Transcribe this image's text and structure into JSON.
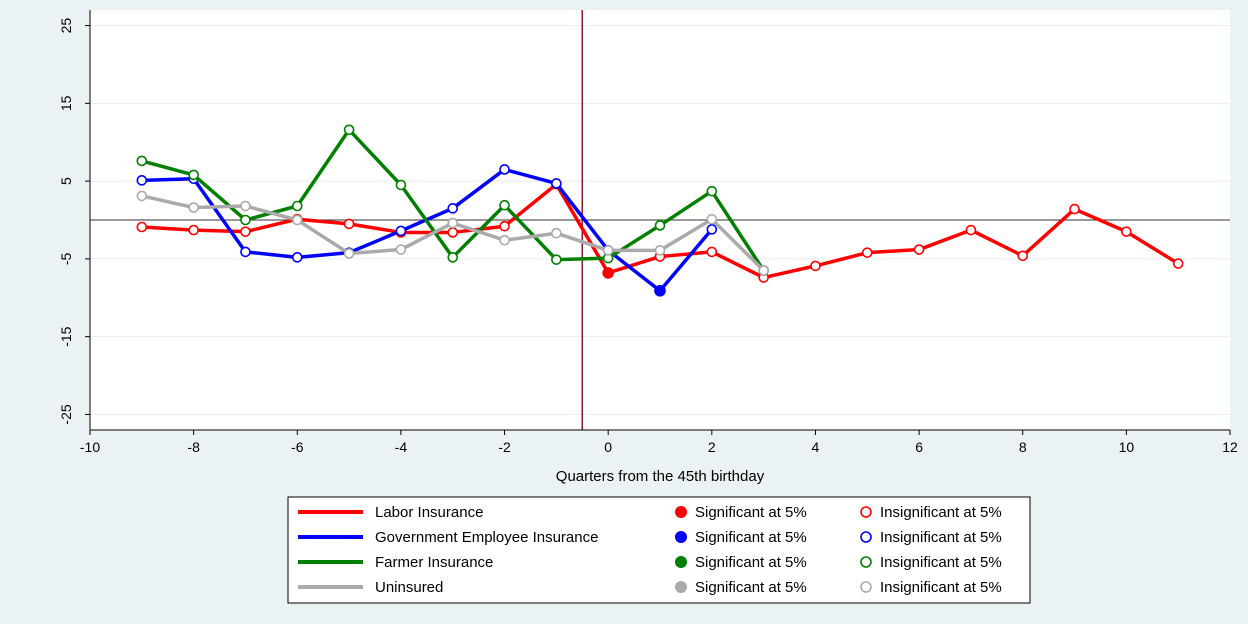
{
  "chart_data": {
    "type": "line",
    "title": "",
    "xlabel": "Quarters from the 45th birthday",
    "ylabel": "",
    "xlim": [
      -10,
      12
    ],
    "ylim": [
      -27,
      27
    ],
    "xticks": [
      -10,
      -8,
      -6,
      -4,
      -2,
      0,
      2,
      4,
      6,
      8,
      10,
      12
    ],
    "yticks": [
      -25,
      -15,
      -5,
      5,
      15,
      25
    ],
    "grid": true,
    "reference_lines": {
      "x": -0.5,
      "y": 0
    },
    "legend_position": "bottom",
    "series": [
      {
        "name": "Labor Insurance",
        "color": "#ff0000",
        "x": [
          -9,
          -8,
          -7,
          -6,
          -5,
          -4,
          -3,
          -2,
          -1,
          0,
          1,
          2,
          3,
          4,
          5,
          6,
          7,
          8,
          9,
          10,
          11
        ],
        "values": [
          -0.9,
          -1.3,
          -1.5,
          0.1,
          -0.5,
          -1.6,
          -1.6,
          -0.8,
          4.6,
          -6.8,
          -4.7,
          -4.1,
          -7.4,
          -5.9,
          -4.2,
          -3.8,
          -1.3,
          -4.6,
          1.4,
          -1.5,
          -5.6
        ],
        "significant": [
          false,
          false,
          false,
          false,
          false,
          false,
          false,
          false,
          false,
          true,
          false,
          false,
          false,
          false,
          false,
          false,
          false,
          false,
          false,
          false,
          false
        ]
      },
      {
        "name": "Government Employee Insurance",
        "color": "#0000ff",
        "x": [
          -9,
          -8,
          -7,
          -6,
          -5,
          -4,
          -3,
          -2,
          -1,
          0,
          1,
          2
        ],
        "values": [
          5.1,
          5.3,
          -4.1,
          -4.8,
          -4.2,
          -1.4,
          1.5,
          6.5,
          4.7,
          -3.9,
          -9.1,
          -1.2
        ],
        "significant": [
          false,
          false,
          false,
          false,
          false,
          false,
          false,
          false,
          false,
          false,
          true,
          false
        ]
      },
      {
        "name": "Farmer Insurance",
        "color": "#008000",
        "x": [
          -9,
          -8,
          -7,
          -6,
          -5,
          -4,
          -3,
          -2,
          -1,
          0,
          1,
          2,
          3
        ],
        "values": [
          7.6,
          5.8,
          0.0,
          1.8,
          11.6,
          4.5,
          -4.8,
          1.9,
          -5.1,
          -4.9,
          -0.7,
          3.7,
          -6.5
        ],
        "significant": [
          false,
          false,
          false,
          false,
          false,
          false,
          false,
          false,
          false,
          false,
          false,
          false,
          false
        ]
      },
      {
        "name": "Uninsured",
        "color": "#aaaaaa",
        "x": [
          -9,
          -8,
          -7,
          -6,
          -5,
          -4,
          -3,
          -2,
          -1,
          0,
          1,
          2,
          3
        ],
        "values": [
          3.1,
          1.6,
          1.8,
          0.0,
          -4.3,
          -3.8,
          -0.4,
          -2.6,
          -1.7,
          -3.9,
          -3.9,
          0.1,
          -6.5
        ],
        "significant": [
          false,
          false,
          false,
          false,
          false,
          false,
          false,
          false,
          false,
          false,
          false,
          false,
          false
        ]
      }
    ],
    "legend": {
      "sig_label": "Significant at 5%",
      "insig_label": "Insignificant at 5%"
    }
  }
}
